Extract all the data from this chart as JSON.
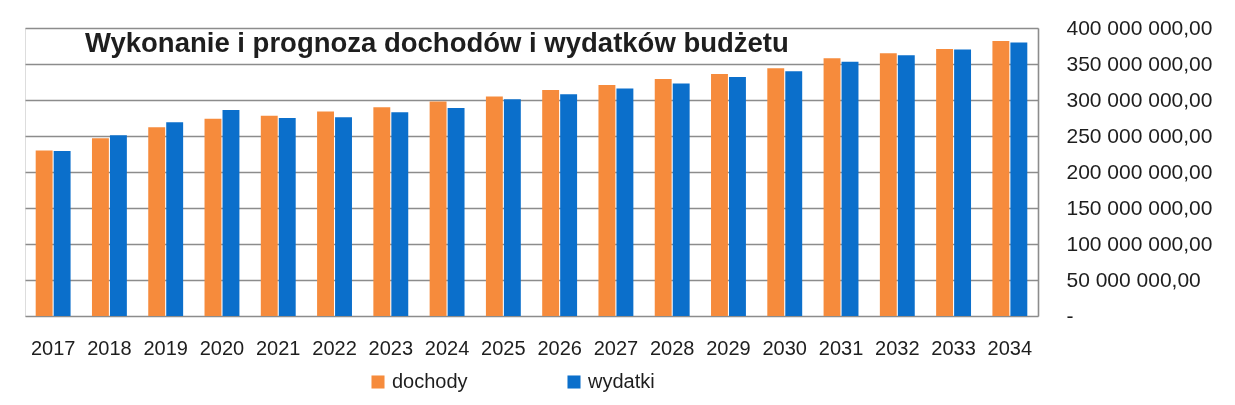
{
  "chart_data": {
    "type": "bar",
    "title": "Wykonanie i prognoza dochodów i wydatków budżetu",
    "categories": [
      "2017",
      "2018",
      "2019",
      "2020",
      "2021",
      "2022",
      "2023",
      "2024",
      "2025",
      "2026",
      "2027",
      "2028",
      "2029",
      "2030",
      "2031",
      "2032",
      "2033",
      "2034"
    ],
    "series": [
      {
        "name": "dochody",
        "color": "#f68b3c",
        "values": [
          230000000,
          247000000,
          262000000,
          274000000,
          278000000,
          284000000,
          290000000,
          298000000,
          305000000,
          314000000,
          321000000,
          329000000,
          336000000,
          344000000,
          358000000,
          365000000,
          371000000,
          382000000
        ]
      },
      {
        "name": "wydatki",
        "color": "#0b6fcb",
        "values": [
          229000000,
          251000000,
          269000000,
          286000000,
          275000000,
          276000000,
          283000000,
          289000000,
          301000000,
          308000000,
          316000000,
          323000000,
          332000000,
          340000000,
          353000000,
          362000000,
          370000000,
          380000000
        ]
      }
    ],
    "ylim": [
      0,
      400000000
    ],
    "yticks": [
      {
        "value": 0,
        "label": "-"
      },
      {
        "value": 50000000,
        "label": "50 000 000,00"
      },
      {
        "value": 100000000,
        "label": "100 000 000,00"
      },
      {
        "value": 150000000,
        "label": "150 000 000,00"
      },
      {
        "value": 200000000,
        "label": "200 000 000,00"
      },
      {
        "value": 250000000,
        "label": "250 000 000,00"
      },
      {
        "value": 300000000,
        "label": "300 000 000,00"
      },
      {
        "value": 350000000,
        "label": "350 000 000,00"
      },
      {
        "value": 400000000,
        "label": "400 000 000,00"
      }
    ],
    "grid": "y",
    "legend": "bottom"
  }
}
